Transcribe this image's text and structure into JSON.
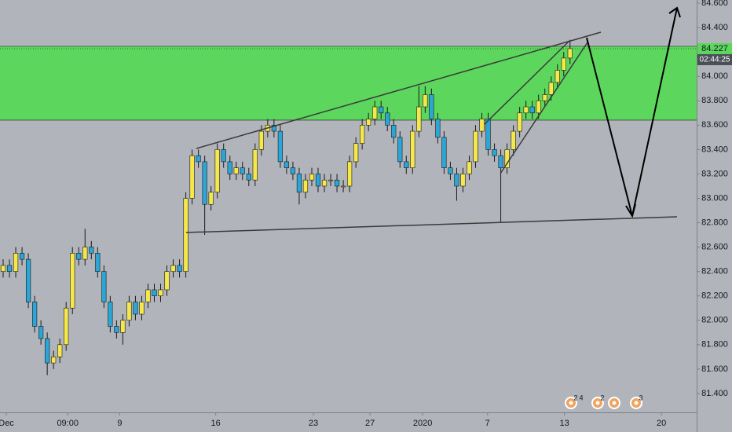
{
  "chart_data": {
    "type": "candlestick",
    "up_color": "#f5e84a",
    "down_color": "#2ba6d6",
    "wick_color": "#1a1a1a",
    "candles": [
      [
        82.4,
        82.5,
        82.35,
        82.45
      ],
      [
        82.45,
        82.5,
        82.35,
        82.4
      ],
      [
        82.4,
        82.6,
        82.35,
        82.55
      ],
      [
        82.55,
        82.6,
        82.45,
        82.5
      ],
      [
        82.5,
        82.55,
        82.1,
        82.15
      ],
      [
        82.15,
        82.2,
        81.9,
        81.95
      ],
      [
        81.95,
        82.0,
        81.8,
        81.85
      ],
      [
        81.85,
        81.9,
        81.55,
        81.65
      ],
      [
        81.65,
        81.75,
        81.6,
        81.7
      ],
      [
        81.7,
        81.85,
        81.65,
        81.8
      ],
      [
        81.8,
        82.15,
        81.75,
        82.1
      ],
      [
        82.1,
        82.6,
        82.05,
        82.55
      ],
      [
        82.55,
        82.6,
        82.45,
        82.5
      ],
      [
        82.5,
        82.75,
        82.45,
        82.6
      ],
      [
        82.6,
        82.65,
        82.5,
        82.55
      ],
      [
        82.55,
        82.6,
        82.35,
        82.4
      ],
      [
        82.4,
        82.45,
        82.1,
        82.15
      ],
      [
        82.15,
        82.2,
        81.9,
        81.95
      ],
      [
        81.95,
        82.0,
        81.85,
        81.9
      ],
      [
        81.9,
        82.05,
        81.8,
        82.0
      ],
      [
        82.0,
        82.2,
        81.95,
        82.15
      ],
      [
        82.15,
        82.2,
        82.0,
        82.05
      ],
      [
        82.05,
        82.2,
        82.0,
        82.15
      ],
      [
        82.15,
        82.3,
        82.1,
        82.25
      ],
      [
        82.25,
        82.3,
        82.15,
        82.2
      ],
      [
        82.2,
        82.3,
        82.15,
        82.25
      ],
      [
        82.25,
        82.45,
        82.2,
        82.4
      ],
      [
        82.4,
        82.5,
        82.35,
        82.45
      ],
      [
        82.45,
        82.5,
        82.35,
        82.4
      ],
      [
        82.4,
        83.05,
        82.35,
        83.0
      ],
      [
        83.0,
        83.4,
        82.95,
        83.35
      ],
      [
        83.35,
        83.4,
        83.25,
        83.3
      ],
      [
        83.3,
        83.35,
        82.7,
        82.95
      ],
      [
        82.95,
        83.1,
        82.9,
        83.05
      ],
      [
        83.05,
        83.45,
        83.0,
        83.4
      ],
      [
        83.4,
        83.45,
        83.25,
        83.3
      ],
      [
        83.3,
        83.35,
        83.15,
        83.2
      ],
      [
        83.2,
        83.3,
        83.15,
        83.25
      ],
      [
        83.25,
        83.3,
        83.15,
        83.2
      ],
      [
        83.2,
        83.25,
        83.1,
        83.15
      ],
      [
        83.15,
        83.45,
        83.1,
        83.4
      ],
      [
        83.4,
        83.6,
        83.35,
        83.55
      ],
      [
        83.55,
        83.65,
        83.5,
        83.6
      ],
      [
        83.6,
        83.65,
        83.5,
        83.55
      ],
      [
        83.55,
        83.6,
        83.25,
        83.3
      ],
      [
        83.3,
        83.35,
        83.2,
        83.25
      ],
      [
        83.25,
        83.3,
        83.15,
        83.2
      ],
      [
        83.2,
        83.25,
        82.95,
        83.05
      ],
      [
        83.05,
        83.2,
        83.0,
        83.15
      ],
      [
        83.15,
        83.25,
        83.1,
        83.2
      ],
      [
        83.2,
        83.25,
        83.05,
        83.1
      ],
      [
        83.1,
        83.2,
        83.05,
        83.15
      ],
      [
        83.15,
        83.2,
        83.1,
        83.15
      ],
      [
        83.15,
        83.2,
        83.05,
        83.1
      ],
      [
        83.1,
        83.15,
        83.05,
        83.1
      ],
      [
        83.1,
        83.35,
        83.05,
        83.3
      ],
      [
        83.3,
        83.5,
        83.25,
        83.45
      ],
      [
        83.45,
        83.65,
        83.4,
        83.6
      ],
      [
        83.6,
        83.7,
        83.55,
        83.65
      ],
      [
        83.65,
        83.8,
        83.6,
        83.75
      ],
      [
        83.75,
        83.8,
        83.65,
        83.7
      ],
      [
        83.7,
        83.75,
        83.55,
        83.6
      ],
      [
        83.6,
        83.65,
        83.45,
        83.5
      ],
      [
        83.5,
        83.55,
        83.25,
        83.3
      ],
      [
        83.3,
        83.35,
        83.2,
        83.25
      ],
      [
        83.25,
        83.6,
        83.2,
        83.55
      ],
      [
        83.55,
        83.92,
        83.5,
        83.75
      ],
      [
        83.75,
        83.92,
        83.7,
        83.85
      ],
      [
        83.85,
        83.9,
        83.6,
        83.65
      ],
      [
        83.65,
        83.7,
        83.45,
        83.5
      ],
      [
        83.5,
        83.55,
        83.2,
        83.25
      ],
      [
        83.25,
        83.3,
        83.15,
        83.2
      ],
      [
        83.2,
        83.25,
        82.98,
        83.1
      ],
      [
        83.1,
        83.25,
        83.05,
        83.2
      ],
      [
        83.2,
        83.35,
        83.15,
        83.3
      ],
      [
        83.3,
        83.6,
        83.25,
        83.55
      ],
      [
        83.55,
        83.7,
        83.5,
        83.65
      ],
      [
        83.65,
        83.7,
        83.35,
        83.4
      ],
      [
        83.4,
        83.45,
        83.3,
        83.35
      ],
      [
        83.35,
        83.4,
        82.8,
        83.25
      ],
      [
        83.25,
        83.45,
        83.2,
        83.4
      ],
      [
        83.4,
        83.6,
        83.35,
        83.55
      ],
      [
        83.55,
        83.75,
        83.5,
        83.7
      ],
      [
        83.7,
        83.8,
        83.65,
        83.75
      ],
      [
        83.75,
        83.8,
        83.65,
        83.7
      ],
      [
        83.7,
        83.85,
        83.65,
        83.8
      ],
      [
        83.8,
        83.9,
        83.75,
        83.85
      ],
      [
        83.85,
        84.0,
        83.8,
        83.95
      ],
      [
        83.95,
        84.1,
        83.9,
        84.05
      ],
      [
        84.05,
        84.2,
        84.0,
        84.15
      ],
      [
        84.15,
        84.3,
        84.1,
        84.227
      ]
    ],
    "zone": [
      83.641,
      84.246
    ],
    "zone_color": "#5cd65c",
    "countdown": "02:44:25",
    "xlim": [
      -0.5,
      110.1
    ],
    "xticks": [
      {
        "value": 0.5,
        "label": "Dec"
      },
      {
        "value": 10.25,
        "label": "09:00"
      },
      {
        "value": 18.5,
        "label": "9"
      },
      {
        "value": 33.75,
        "label": "16"
      },
      {
        "value": 49.25,
        "label": "23"
      },
      {
        "value": 58.25,
        "label": "27"
      },
      {
        "value": 66.6,
        "label": "2020"
      },
      {
        "value": 76.9,
        "label": "7"
      },
      {
        "value": 89.1,
        "label": "13"
      },
      {
        "value": 104.5,
        "label": "20"
      }
    ],
    "ylim": [
      81.245,
      84.626
    ],
    "yticks": [
      {
        "value": 81.4,
        "label": "81.400"
      },
      {
        "value": 81.6,
        "label": "81.600"
      },
      {
        "value": 81.8,
        "label": "81.800"
      },
      {
        "value": 82.0,
        "label": "82.000"
      },
      {
        "value": 82.2,
        "label": "82.200"
      },
      {
        "value": 82.4,
        "label": "82.400"
      },
      {
        "value": 82.6,
        "label": "82.600"
      },
      {
        "value": 82.8,
        "label": "82.800"
      },
      {
        "value": 83.0,
        "label": "83.000"
      },
      {
        "value": 83.2,
        "label": "83.200"
      },
      {
        "value": 83.4,
        "label": "83.400"
      },
      {
        "value": 83.6,
        "label": "83.600"
      },
      {
        "value": 83.8,
        "label": "83.800"
      },
      {
        "value": 84.0,
        "label": "84.000"
      },
      {
        "value": 84.2,
        "label": "84.200"
      },
      {
        "value": 84.4,
        "label": "84.400"
      },
      {
        "value": 84.6,
        "label": "84.600"
      }
    ],
    "events": [
      "2",
      "4",
      "2",
      "3"
    ]
  }
}
